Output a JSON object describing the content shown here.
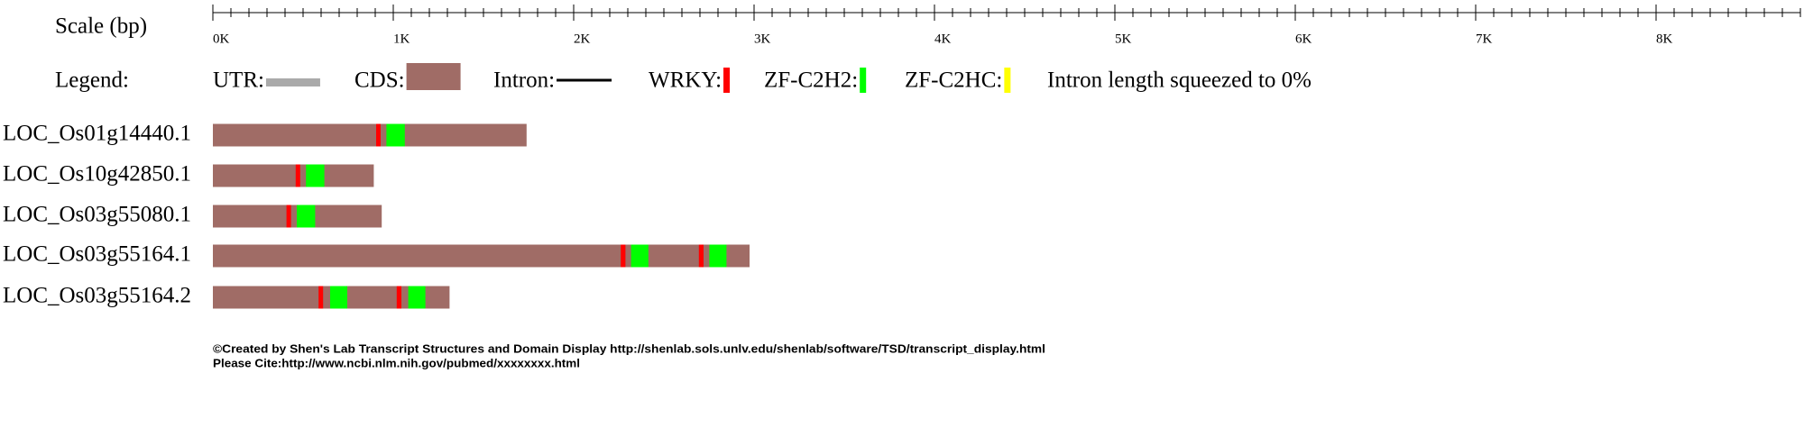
{
  "scale": {
    "label": "Scale (bp)",
    "axis_end": 8800,
    "minor_tick_step": 100,
    "ticks": [
      {
        "value": 0,
        "label": "0K"
      },
      {
        "value": 1000,
        "label": "1K"
      },
      {
        "value": 2000,
        "label": "2K"
      },
      {
        "value": 3000,
        "label": "3K"
      },
      {
        "value": 4000,
        "label": "4K"
      },
      {
        "value": 5000,
        "label": "5K"
      },
      {
        "value": 6000,
        "label": "6K"
      },
      {
        "value": 7000,
        "label": "7K"
      },
      {
        "value": 8000,
        "label": "8K"
      }
    ]
  },
  "legend": {
    "title": "Legend:",
    "items": [
      {
        "label": "UTR:",
        "color": "#aaaaaa",
        "kind": "utr"
      },
      {
        "label": "CDS:",
        "color": "#a06c66",
        "kind": "cds"
      },
      {
        "label": "Intron:",
        "color": "#000000",
        "kind": "intron"
      },
      {
        "label": "WRKY:",
        "color": "#ff0000",
        "kind": "domain"
      },
      {
        "label": "ZF-C2H2:",
        "color": "#00ff00",
        "kind": "domain"
      },
      {
        "label": "ZF-C2HC:",
        "color": "#ffff00",
        "kind": "domain"
      }
    ],
    "note": "Intron length squeezed to 0%"
  },
  "transcripts": [
    {
      "name": "LOC_Os01g14440.1",
      "length": 1739,
      "domains": [
        {
          "type": "WRKY",
          "start": 905,
          "end": 930
        },
        {
          "type": "ZF-C2H2",
          "start": 962,
          "end": 1064
        }
      ]
    },
    {
      "name": "LOC_Os10g42850.1",
      "length": 892,
      "domains": [
        {
          "type": "WRKY",
          "start": 459,
          "end": 484
        },
        {
          "type": "ZF-C2H2",
          "start": 516,
          "end": 618
        }
      ]
    },
    {
      "name": "LOC_Os03g55080.1",
      "length": 936,
      "domains": [
        {
          "type": "WRKY",
          "start": 408,
          "end": 433
        },
        {
          "type": "ZF-C2H2",
          "start": 465,
          "end": 567
        }
      ]
    },
    {
      "name": "LOC_Os03g55164.1",
      "length": 2975,
      "domains": [
        {
          "type": "WRKY",
          "start": 2261,
          "end": 2287
        },
        {
          "type": "ZF-C2H2",
          "start": 2318,
          "end": 2414
        },
        {
          "type": "WRKY",
          "start": 2694,
          "end": 2720
        },
        {
          "type": "ZF-C2H2",
          "start": 2752,
          "end": 2847
        }
      ]
    },
    {
      "name": "LOC_Os03g55164.2",
      "length": 1312,
      "domains": [
        {
          "type": "WRKY",
          "start": 586,
          "end": 611
        },
        {
          "type": "ZF-C2H2",
          "start": 650,
          "end": 745
        },
        {
          "type": "WRKY",
          "start": 1019,
          "end": 1045
        },
        {
          "type": "ZF-C2H2",
          "start": 1083,
          "end": 1178
        }
      ]
    }
  ],
  "footer": {
    "credit": "©Created by Shen's Lab Transcript Structures and Domain Display http://shenlab.sols.unlv.edu/shenlab/software/TSD/transcript_display.html",
    "cite": "Please Cite:http://www.ncbi.nlm.nih.gov/pubmed/xxxxxxxx.html"
  }
}
